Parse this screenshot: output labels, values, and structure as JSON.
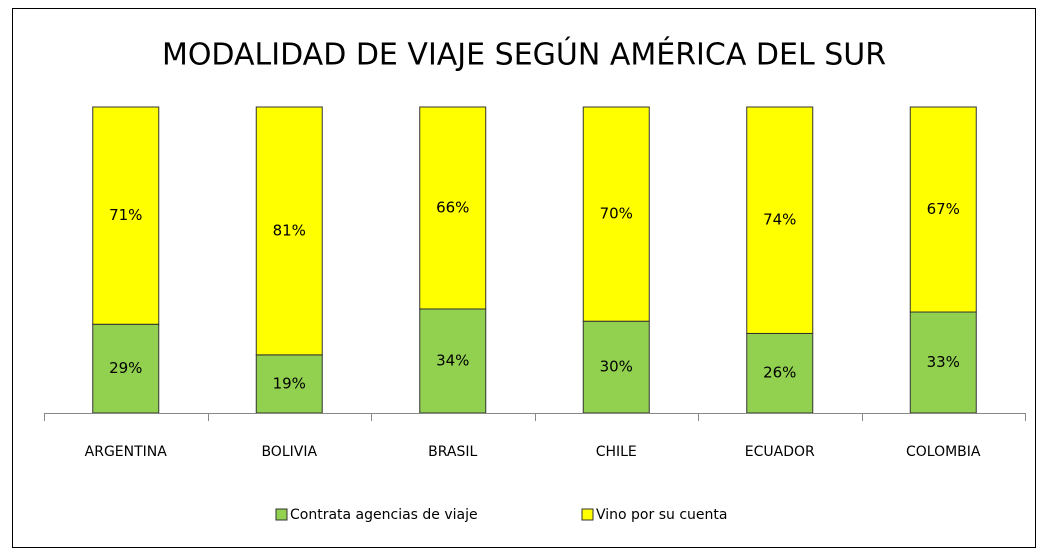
{
  "chart_data": {
    "type": "stacked_bar_100",
    "title": "MODALIDAD DE VIAJE SEGÚN AMÉRICA DEL SUR",
    "categories": [
      "ARGENTINA",
      "BOLIVIA",
      "BRASIL",
      "CHILE",
      "ECUADOR",
      "COLOMBIA"
    ],
    "series": [
      {
        "name": "Contrata agencias de viaje",
        "color": "#92d050",
        "values": [
          29,
          19,
          34,
          30,
          26,
          33
        ],
        "value_labels": [
          "29%",
          "19%",
          "34%",
          "30%",
          "26%",
          "33%"
        ]
      },
      {
        "name": "Vino por su cuenta",
        "color": "#ffff00",
        "values": [
          71,
          81,
          66,
          70,
          74,
          67
        ],
        "value_labels": [
          "71%",
          "81%",
          "66%",
          "70%",
          "74%",
          "67%"
        ]
      }
    ],
    "legend": "bottom"
  }
}
